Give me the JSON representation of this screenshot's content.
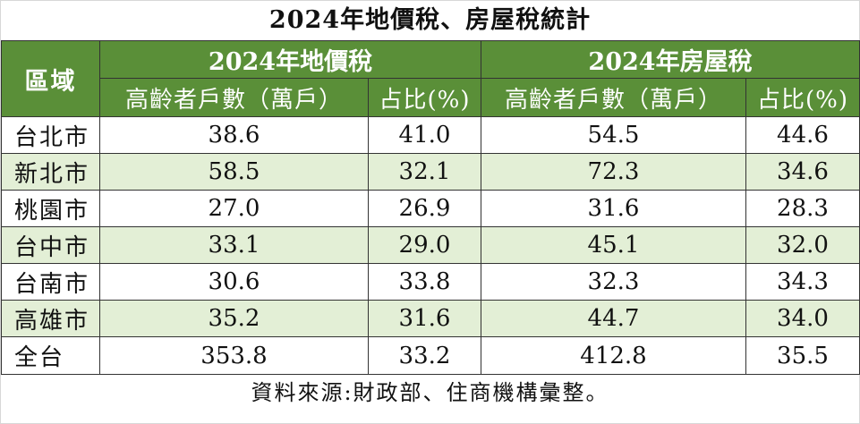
{
  "title": "2024年地價稅、房屋稅統計",
  "header": {
    "region": "區域",
    "group_land": "2024年地價稅",
    "group_house": "2024年房屋稅",
    "col_households": "高齡者戶數（萬戶）",
    "col_share": "占比(%)"
  },
  "rows": [
    {
      "region": "台北市",
      "land_households": "38.6",
      "land_share": "41.0",
      "house_households": "54.5",
      "house_share": "44.6"
    },
    {
      "region": "新北市",
      "land_households": "58.5",
      "land_share": "32.1",
      "house_households": "72.3",
      "house_share": "34.6"
    },
    {
      "region": "桃園市",
      "land_households": "27.0",
      "land_share": "26.9",
      "house_households": "31.6",
      "house_share": "28.3"
    },
    {
      "region": "台中市",
      "land_households": "33.1",
      "land_share": "29.0",
      "house_households": "45.1",
      "house_share": "32.0"
    },
    {
      "region": "台南市",
      "land_households": "30.6",
      "land_share": "33.8",
      "house_households": "32.3",
      "house_share": "34.3"
    },
    {
      "region": "高雄市",
      "land_households": "35.2",
      "land_share": "31.6",
      "house_households": "44.7",
      "house_share": "34.0"
    },
    {
      "region": "全台",
      "land_households": "353.8",
      "land_share": "33.2",
      "house_households": "412.8",
      "house_share": "35.5"
    }
  ],
  "source": "資料來源:財政部、住商機構彙整。",
  "colors": {
    "header_bg": "#5a8f38",
    "header_text": "#ffffff",
    "alt_row_bg": "#e3efd6",
    "border": "#333333"
  }
}
